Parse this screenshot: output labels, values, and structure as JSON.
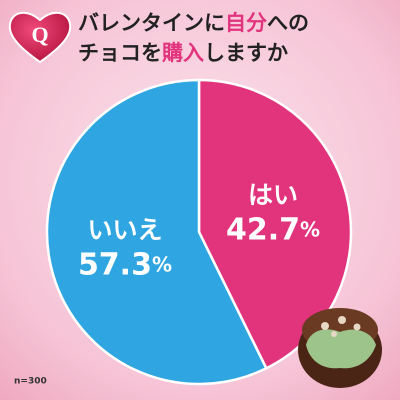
{
  "chart_data": {
    "type": "pie",
    "badge": "Q",
    "title_lines": [
      [
        "バレンタインに",
        "自分",
        "への"
      ],
      [
        "チョコを",
        "購入",
        "しますか"
      ]
    ],
    "categories": [
      "はい",
      "いいえ"
    ],
    "values": [
      42.7,
      57.3
    ],
    "value_labels": [
      "42.7%",
      "57.3%"
    ],
    "colors": [
      "#e2337d",
      "#2fa6e2"
    ],
    "note": "n=300"
  }
}
